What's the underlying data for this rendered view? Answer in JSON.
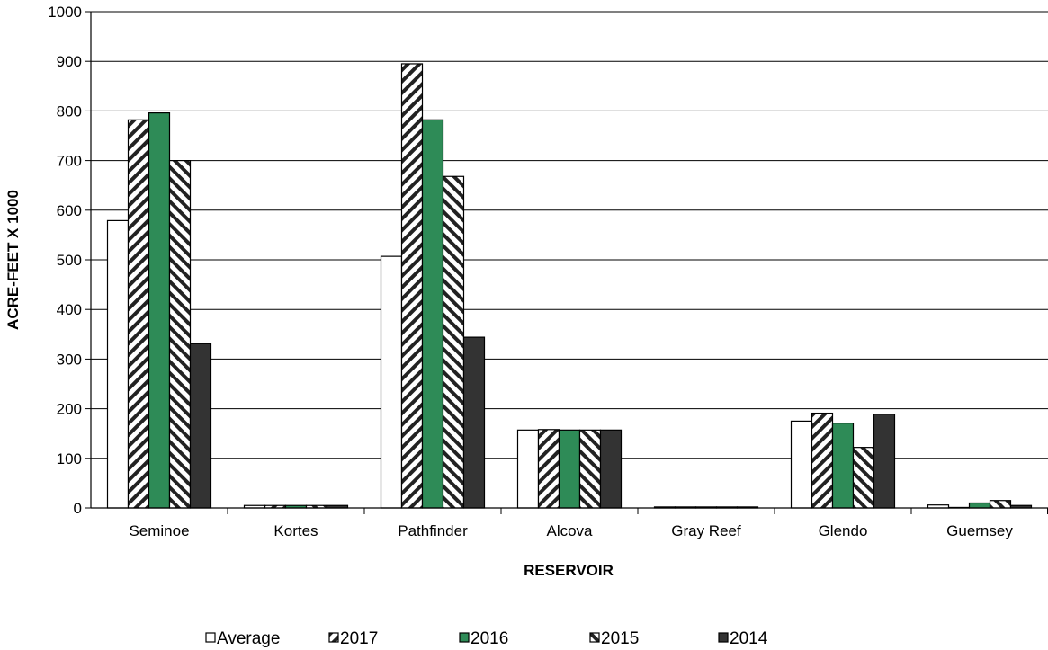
{
  "chart_data": {
    "type": "bar",
    "xlabel": "RESERVOIR",
    "ylabel": "ACRE-FEET X 1000",
    "ylim": [
      0,
      1000
    ],
    "yticks": [
      "0",
      "100",
      "200",
      "300",
      "400",
      "500",
      "600",
      "700",
      "800",
      "900",
      "1000"
    ],
    "categories": [
      "Seminoe",
      "Kortes",
      "Pathfinder",
      "Alcova",
      "Gray Reef",
      "Glendo",
      "Guernsey"
    ],
    "grid": "horizontal",
    "legend_position": "bottom",
    "series": [
      {
        "name": "Average",
        "pattern": "empty",
        "color": "#ffffff",
        "values": [
          579,
          5,
          507,
          157,
          2,
          175,
          6
        ]
      },
      {
        "name": "2017",
        "pattern": "hatch-right",
        "color": "#ffffff",
        "values": [
          782,
          5,
          895,
          158,
          2,
          191,
          1
        ]
      },
      {
        "name": "2016",
        "pattern": "solid",
        "color": "#2e8b57",
        "values": [
          796,
          5,
          782,
          157,
          2,
          171,
          10
        ]
      },
      {
        "name": "2015",
        "pattern": "hatch-left",
        "color": "#ffffff",
        "values": [
          700,
          5,
          668,
          157,
          2,
          122,
          15
        ]
      },
      {
        "name": "2014",
        "pattern": "solid",
        "color": "#333333",
        "values": [
          331,
          5,
          344,
          157,
          2,
          189,
          5
        ]
      }
    ]
  }
}
